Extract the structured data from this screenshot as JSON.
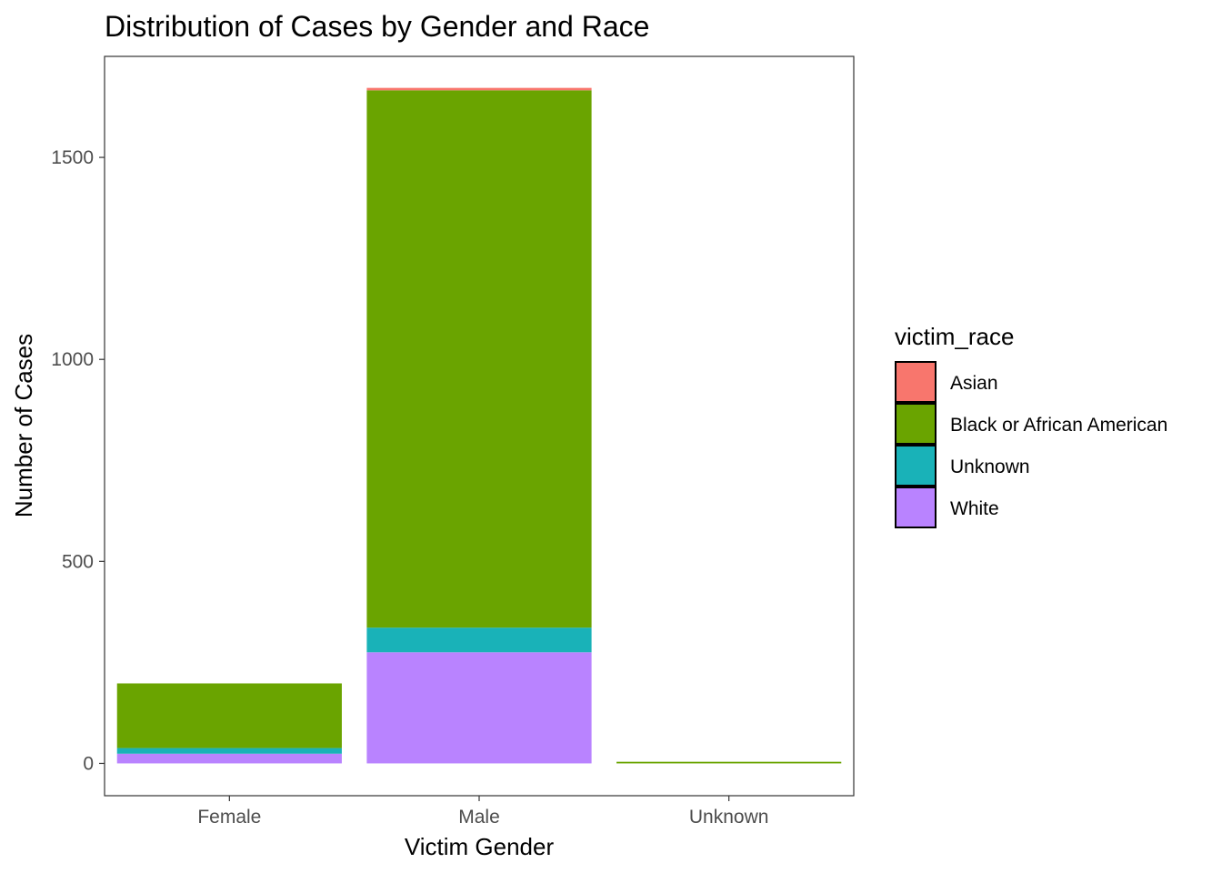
{
  "chart_data": {
    "type": "bar",
    "stacked": true,
    "title": "Distribution of Cases by Gender and Race",
    "xlabel": "Victim Gender",
    "ylabel": "Number of Cases",
    "categories": [
      "Female",
      "Male",
      "Unknown"
    ],
    "ylim": [
      -80,
      1750
    ],
    "yticks": [
      0,
      500,
      1000,
      1500
    ],
    "grid": false,
    "legend": {
      "title": "victim_race",
      "position": "right"
    },
    "series": [
      {
        "name": "White",
        "color": "#B983FF",
        "values": [
          24,
          275,
          0
        ]
      },
      {
        "name": "Unknown",
        "color": "#19B2B8",
        "values": [
          14,
          61,
          0
        ]
      },
      {
        "name": "Black or African American",
        "color": "#6AA400",
        "values": [
          160,
          1330,
          4
        ]
      },
      {
        "name": "Asian",
        "color": "#F8766D",
        "values": [
          0,
          6,
          0
        ]
      }
    ],
    "legend_order": [
      "Asian",
      "Black or African American",
      "Unknown",
      "White"
    ]
  }
}
